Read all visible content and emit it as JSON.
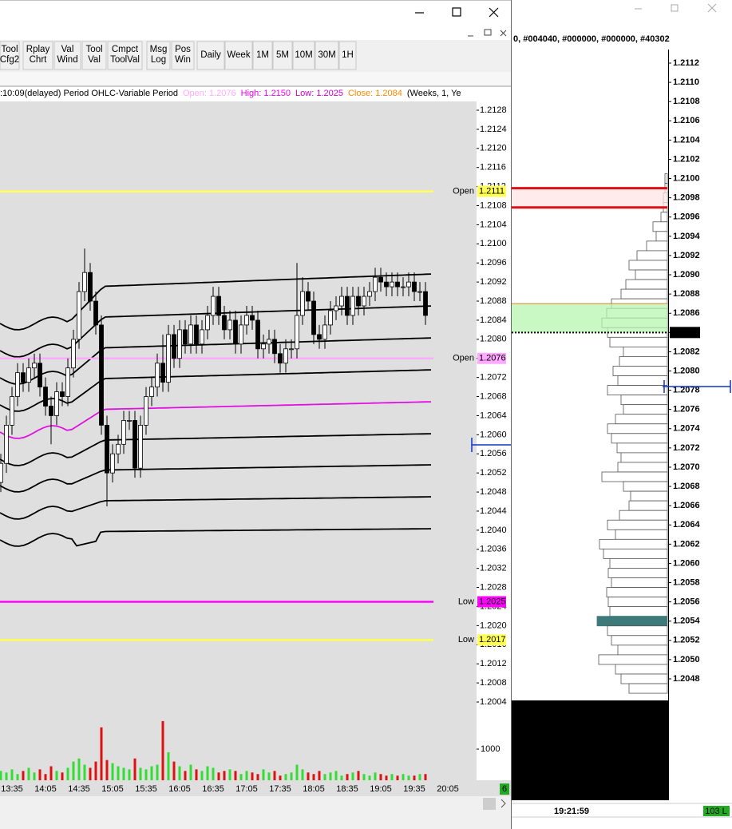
{
  "toolbar": {
    "buttons": [
      [
        "Tool",
        "Cfg2"
      ],
      [
        "Rplay",
        "Chrt"
      ],
      [
        "Val",
        "Wind"
      ],
      [
        "Tool",
        "Val"
      ],
      [
        "Cmpct",
        "ToolVal"
      ],
      [
        "Msg",
        "Log"
      ],
      [
        "Pos",
        "Win"
      ],
      [
        "Daily"
      ],
      [
        "Week"
      ],
      [
        "1M"
      ],
      [
        "5M"
      ],
      [
        "10M"
      ],
      [
        "30M"
      ],
      [
        "1H"
      ]
    ]
  },
  "info": {
    "prefix": ":10:09(delayed) Period OHLC-Variable Period",
    "open": "Open: 1.2076",
    "high": "High: 1.2150",
    "low": "Low: 1.2025",
    "close": "Close: 1.2084",
    "suffix": "(Weeks, 1, Ye"
  },
  "right_header": "0, #004040, #000000, #000000, #40302",
  "clock": "19:21:59",
  "right_badge": "103 L",
  "left_badge": "6",
  "chart_data": [
    {
      "type": "candlestick",
      "ylim": [
        1.2004,
        1.2128
      ],
      "yticks": [
        1.2128,
        1.2124,
        {
          "value": 1.212,
          "label": "1.2120"
        },
        1.2116,
        1.2112,
        1.2108,
        1.2104,
        {
          "value": 1.21,
          "label": "1.2100"
        },
        1.2096,
        1.2092,
        1.2088,
        1.2084,
        {
          "value": 1.208,
          "label": "1.2080"
        },
        1.2076,
        1.2072,
        1.2068,
        1.2064,
        {
          "value": 1.206,
          "label": "1.2060"
        },
        1.2056,
        1.2052,
        1.2048,
        1.2044,
        {
          "value": 1.204,
          "label": "1.2040"
        },
        1.2036,
        1.2032,
        1.2028,
        1.2024,
        {
          "value": 1.202,
          "label": "1.2020"
        },
        1.2016,
        1.2012,
        1.2008,
        1.2004
      ],
      "time_labels": [
        "13:35",
        "14:05",
        "14:35",
        "15:05",
        "15:35",
        "16:05",
        "16:35",
        "17:05",
        "17:35",
        "18:05",
        "18:35",
        "19:05",
        "19:35",
        "20:05"
      ],
      "candles": [
        [
          1.205,
          1.2056,
          1.2048,
          1.2054
        ],
        [
          1.2054,
          1.2064,
          1.2052,
          1.2062
        ],
        [
          1.2062,
          1.207,
          1.206,
          1.2068
        ],
        [
          1.2068,
          1.2075,
          1.2066,
          1.2073
        ],
        [
          1.2073,
          1.2075,
          1.2069,
          1.2071
        ],
        [
          1.2071,
          1.2076,
          1.2069,
          1.2074
        ],
        [
          1.2074,
          1.2077,
          1.2072,
          1.2075
        ],
        [
          1.2075,
          1.2077,
          1.2068,
          1.207
        ],
        [
          1.207,
          1.2072,
          1.2064,
          1.2066
        ],
        [
          1.2066,
          1.2068,
          1.2058,
          1.2064
        ],
        [
          1.2064,
          1.2071,
          1.2062,
          1.2069
        ],
        [
          1.2069,
          1.2071,
          1.2066,
          1.2068
        ],
        [
          1.2068,
          1.2076,
          1.2066,
          1.2074
        ],
        [
          1.2074,
          1.2082,
          1.2072,
          1.208
        ],
        [
          1.208,
          1.2092,
          1.2078,
          1.209
        ],
        [
          1.209,
          1.2099,
          1.2088,
          1.2094
        ],
        [
          1.2094,
          1.2096,
          1.2086,
          1.2088
        ],
        [
          1.2088,
          1.209,
          1.2081,
          1.2083
        ],
        [
          1.2083,
          1.2085,
          1.206,
          1.2062
        ],
        [
          1.2062,
          1.2064,
          1.2045,
          1.2052
        ],
        [
          1.2052,
          1.2058,
          1.205,
          1.2056
        ],
        [
          1.2056,
          1.206,
          1.2054,
          1.2058
        ],
        [
          1.2058,
          1.2065,
          1.2056,
          1.2063
        ],
        [
          1.2063,
          1.2065,
          1.2061,
          1.2063
        ],
        [
          1.2063,
          1.2065,
          1.2051,
          1.2053
        ],
        [
          1.2053,
          1.2064,
          1.2051,
          1.2062
        ],
        [
          1.2062,
          1.207,
          1.206,
          1.2068
        ],
        [
          1.2068,
          1.2072,
          1.2066,
          1.207
        ],
        [
          1.207,
          1.2077,
          1.2068,
          1.2075
        ],
        [
          1.2075,
          1.2081,
          1.2069,
          1.2071
        ],
        [
          1.2071,
          1.2083,
          1.2069,
          1.2081
        ],
        [
          1.2081,
          1.2083,
          1.2074,
          1.2076
        ],
        [
          1.2076,
          1.2084,
          1.2074,
          1.2082
        ],
        [
          1.2082,
          1.2084,
          1.2077,
          1.2079
        ],
        [
          1.2079,
          1.2085,
          1.2077,
          1.2083
        ],
        [
          1.2083,
          1.2085,
          1.2077,
          1.2079
        ],
        [
          1.2079,
          1.2084,
          1.2077,
          1.2082
        ],
        [
          1.2082,
          1.2087,
          1.208,
          1.2085
        ],
        [
          1.2085,
          1.2091,
          1.2083,
          1.2089
        ],
        [
          1.2089,
          1.2091,
          1.2083,
          1.2085
        ],
        [
          1.2085,
          1.2087,
          1.208,
          1.2082
        ],
        [
          1.2082,
          1.2086,
          1.208,
          1.2084
        ],
        [
          1.2084,
          1.2086,
          1.2077,
          1.2079
        ],
        [
          1.2079,
          1.2085,
          1.2077,
          1.2083
        ],
        [
          1.2083,
          1.2087,
          1.2081,
          1.2085
        ],
        [
          1.2085,
          1.2087,
          1.2082,
          1.2084
        ],
        [
          1.2084,
          1.2086,
          1.2076,
          1.2078
        ],
        [
          1.2078,
          1.2081,
          1.2076,
          1.2079
        ],
        [
          1.2079,
          1.2082,
          1.2077,
          1.208
        ],
        [
          1.208,
          1.2082,
          1.2075,
          1.2077
        ],
        [
          1.2077,
          1.2079,
          1.2073,
          1.2075
        ],
        [
          1.2075,
          1.208,
          1.2073,
          1.2078
        ],
        [
          1.2078,
          1.208,
          1.2076,
          1.2078
        ],
        [
          1.2078,
          1.2096,
          1.2076,
          1.2085
        ],
        [
          1.2085,
          1.2093,
          1.2083,
          1.209
        ],
        [
          1.209,
          1.2092,
          1.2086,
          1.2088
        ],
        [
          1.2088,
          1.209,
          1.2079,
          1.2081
        ],
        [
          1.2081,
          1.2083,
          1.2078,
          1.208
        ],
        [
          1.208,
          1.2085,
          1.2078,
          1.2083
        ],
        [
          1.2083,
          1.2088,
          1.2081,
          1.2086
        ],
        [
          1.2086,
          1.2089,
          1.2084,
          1.2087
        ],
        [
          1.2087,
          1.2091,
          1.2085,
          1.2089
        ],
        [
          1.2089,
          1.2091,
          1.2083,
          1.2085
        ],
        [
          1.2085,
          1.2091,
          1.2083,
          1.2089
        ],
        [
          1.2089,
          1.2091,
          1.2085,
          1.2087
        ],
        [
          1.2087,
          1.2091,
          1.2085,
          1.2089
        ],
        [
          1.2089,
          1.2092,
          1.2087,
          1.209
        ],
        [
          1.209,
          1.2095,
          1.2088,
          1.2093
        ],
        [
          1.2093,
          1.2095,
          1.209,
          1.2092
        ],
        [
          1.2092,
          1.2094,
          1.2089,
          1.2091
        ],
        [
          1.2091,
          1.2094,
          1.2089,
          1.2092
        ],
        [
          1.2092,
          1.2094,
          1.2089,
          1.2091
        ],
        [
          1.2091,
          1.2093,
          1.2089,
          1.2091
        ],
        [
          1.2091,
          1.2094,
          1.2089,
          1.2092
        ],
        [
          1.2092,
          1.2094,
          1.2088,
          1.209
        ],
        [
          1.209,
          1.2092,
          1.2088,
          1.209
        ],
        [
          1.209,
          1.2092,
          1.2083,
          1.2085
        ]
      ],
      "up_color": "#ffffff",
      "down_color": "#000000",
      "volume": {
        "values": [
          300,
          250,
          350,
          200,
          300,
          400,
          250,
          350,
          200,
          450,
          300,
          250,
          400,
          600,
          700,
          500,
          400,
          600,
          1700,
          650,
          550,
          450,
          400,
          350,
          700,
          400,
          350,
          450,
          500,
          1900,
          900,
          600,
          450,
          300,
          500,
          350,
          300,
          450,
          400,
          250,
          300,
          350,
          300,
          200,
          300,
          250,
          200,
          350,
          250,
          300,
          150,
          200,
          250,
          500,
          350,
          250,
          200,
          300,
          200,
          250,
          300,
          150,
          200,
          250,
          300,
          200,
          150,
          250,
          200,
          150,
          200,
          150,
          200,
          150,
          150,
          200,
          200
        ],
        "ylim": [
          0,
          2500
        ],
        "yticks": [
          1000
        ],
        "up_color": "#33dd33",
        "down_color": "#dd1111"
      },
      "levels": [
        {
          "label": "Open",
          "value": 1.2111,
          "color": "#ffff55",
          "text_color": "#ffff88"
        },
        {
          "label": "Open",
          "value": 1.2076,
          "color": "#ffaaff",
          "text_color": "#ffaaff"
        },
        {
          "label": "Low",
          "value": 1.2025,
          "color": "#ff00ff",
          "text_color": "#ff00ff"
        },
        {
          "label": "Low",
          "value": 1.2017,
          "color": "#ffff55",
          "text_color": "#ffff66"
        }
      ]
    },
    {
      "type": "profile",
      "ylim": [
        1.2048,
        1.2112
      ],
      "xlim": [
        0,
        100
      ],
      "yticks": [
        1.2112,
        {
          "value": 1.211,
          "label": "1.2110"
        },
        1.2108,
        1.2106,
        1.2104,
        1.2102,
        {
          "value": 1.21,
          "label": "1.2100"
        },
        1.2098,
        1.2096,
        1.2094,
        1.2092,
        {
          "value": 1.209,
          "label": "1.2090"
        },
        1.2088,
        1.2086,
        1.2084,
        1.2082,
        {
          "value": 1.208,
          "label": "1.2080"
        },
        1.2078,
        1.2076,
        1.2074,
        1.2072,
        {
          "value": 1.207,
          "label": "1.2070"
        },
        1.2068,
        1.2066,
        1.2064,
        1.2062,
        {
          "value": 1.206,
          "label": "1.2060"
        },
        1.2058,
        1.2056,
        1.2054,
        1.2052,
        {
          "value": 1.205,
          "label": "1.2050"
        },
        1.2048
      ],
      "prices": [
        1.21,
        1.2099,
        1.2098,
        1.2097,
        1.2096,
        1.2095,
        1.2094,
        1.2093,
        1.2092,
        1.2091,
        1.209,
        1.2089,
        1.2088,
        1.2087,
        1.2086,
        1.2085,
        1.2084,
        1.2083,
        1.2082,
        1.2081,
        1.208,
        1.2079,
        1.2078,
        1.2077,
        1.2076,
        1.2075,
        1.2074,
        1.2073,
        1.2072,
        1.2071,
        1.207,
        1.2069,
        1.2068,
        1.2067,
        1.2066,
        1.2065,
        1.2064,
        1.2063,
        1.2062,
        1.2061,
        1.206,
        1.2059,
        1.2058,
        1.2057,
        1.2056,
        1.2055,
        1.2054,
        1.2053,
        1.2052,
        1.2051,
        1.205,
        1.2049,
        1.2048,
        1.2047
      ],
      "volumes": [
        3,
        3,
        5,
        5,
        8,
        18,
        14,
        26,
        38,
        48,
        40,
        52,
        58,
        70,
        76,
        82,
        75,
        72,
        55,
        60,
        68,
        62,
        75,
        58,
        55,
        65,
        75,
        70,
        63,
        58,
        62,
        82,
        55,
        46,
        48,
        60,
        75,
        65,
        85,
        80,
        72,
        74,
        70,
        76,
        74,
        72,
        88,
        75,
        70,
        62,
        86,
        65,
        58,
        48
      ],
      "poc": 1.2054,
      "poc_color": "#3f7a7a",
      "current": 1.2084,
      "zones": [
        {
          "from": 1.2097,
          "to": 1.2099,
          "color": "#ffe4e4",
          "edge": "#dd1111"
        },
        {
          "from": 1.2084,
          "to": 1.2087,
          "color": "#b8f5b0",
          "edge": "#e08a3c"
        }
      ]
    }
  ]
}
